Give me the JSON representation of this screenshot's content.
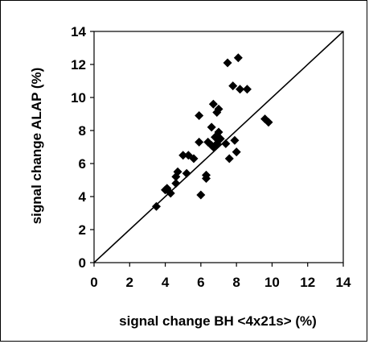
{
  "chart_data": {
    "type": "scatter",
    "title": "",
    "xlabel": "signal change BH <4x21s> (%)",
    "ylabel": "signal change ALAP (%)",
    "xlim": [
      0,
      14
    ],
    "ylim": [
      0,
      14
    ],
    "xticks": [
      "0",
      "2",
      "4",
      "6",
      "8",
      "10",
      "12",
      "14"
    ],
    "yticks": [
      "0",
      "2",
      "4",
      "6",
      "8",
      "10",
      "12",
      "14"
    ],
    "grid": false,
    "legend": "none",
    "marker": "diamond",
    "marker_color": "#000000",
    "reference_line": {
      "label": "y = x",
      "from": [
        0,
        0
      ],
      "to": [
        14,
        14
      ]
    },
    "series": [
      {
        "points": [
          [
            3.5,
            3.4
          ],
          [
            4.0,
            4.4
          ],
          [
            4.1,
            4.5
          ],
          [
            4.3,
            4.2
          ],
          [
            4.6,
            4.8
          ],
          [
            4.6,
            5.2
          ],
          [
            4.7,
            5.5
          ],
          [
            5.0,
            6.5
          ],
          [
            5.2,
            5.4
          ],
          [
            5.3,
            6.5
          ],
          [
            5.6,
            6.3
          ],
          [
            5.9,
            8.9
          ],
          [
            5.9,
            7.3
          ],
          [
            6.0,
            4.1
          ],
          [
            6.3,
            5.3
          ],
          [
            6.3,
            5.1
          ],
          [
            6.4,
            7.3
          ],
          [
            6.6,
            8.2
          ],
          [
            6.6,
            7.1
          ],
          [
            6.7,
            9.6
          ],
          [
            6.7,
            7.0
          ],
          [
            6.8,
            7.6
          ],
          [
            6.9,
            9.1
          ],
          [
            6.9,
            7.2
          ],
          [
            7.0,
            9.3
          ],
          [
            7.0,
            7.9
          ],
          [
            7.1,
            7.5
          ],
          [
            7.4,
            7.2
          ],
          [
            7.5,
            12.1
          ],
          [
            7.6,
            6.3
          ],
          [
            7.8,
            10.7
          ],
          [
            7.9,
            7.4
          ],
          [
            8.0,
            6.7
          ],
          [
            8.1,
            12.4
          ],
          [
            8.2,
            10.5
          ],
          [
            8.6,
            10.5
          ],
          [
            9.6,
            8.7
          ],
          [
            9.8,
            8.5
          ]
        ]
      }
    ]
  }
}
